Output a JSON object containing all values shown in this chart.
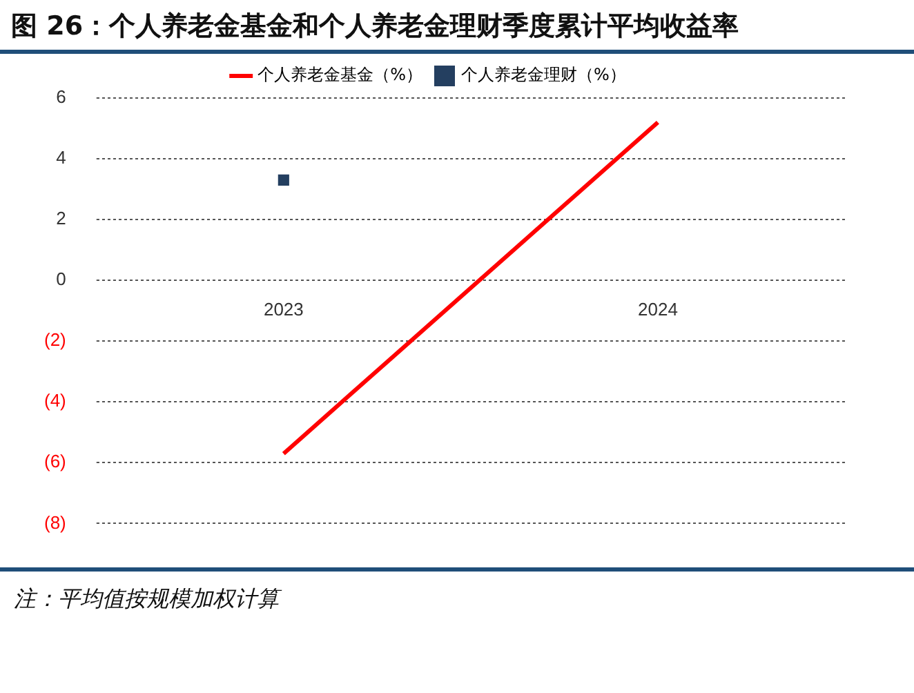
{
  "chart_data": {
    "type": "line",
    "title": "图 26：个人养老金基金和个人养老金理财季度累计平均收益率",
    "categories": [
      "2023",
      "2024"
    ],
    "series": [
      {
        "name": "个人养老金基金（%）",
        "color": "#ff0000",
        "marker": "none",
        "values": [
          -5.7,
          5.2
        ]
      },
      {
        "name": "个人养老金理财（%）",
        "type": "scatter",
        "color": "#243f60",
        "marker": "square",
        "values": [
          3.3,
          null
        ]
      }
    ],
    "ylim": [
      -8,
      6
    ],
    "yticks": [
      {
        "value": -8,
        "label": "(8)"
      },
      {
        "value": -6,
        "label": "(6)"
      },
      {
        "value": -4,
        "label": "(4)"
      },
      {
        "value": -2,
        "label": "(2)"
      },
      0,
      2,
      4,
      6
    ],
    "grid": "y",
    "line_style": "solid",
    "legend": "top",
    "annotations": [
      "注：平均值按规模加权计算"
    ]
  }
}
